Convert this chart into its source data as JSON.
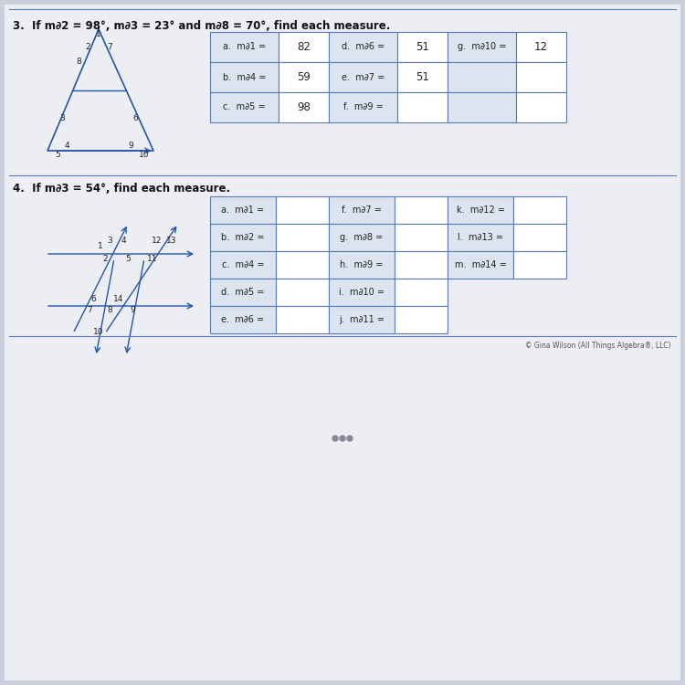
{
  "bg_color": "#d8dce8",
  "page_bg": "#f0f2f8",
  "title3": "3.  If m∂2 = 98°, m∂3 = 23° and m∂8 = 70°, find each measure.",
  "title4": "4.  If m∂3 = 54°, find each measure.",
  "section3_answers": {
    "a": "82",
    "b": "59",
    "c": "98",
    "d": "51",
    "e": "51",
    "f": "",
    "g_label": "m∂10 =",
    "g": "12"
  },
  "section3_rows": [
    [
      "a.  m∂1 =",
      "82",
      "d.  m∂6 =",
      "51",
      "g.  m∂10 =",
      "12"
    ],
    [
      "b.  m∂4 =",
      "59",
      "e.  m∂7 =",
      "51",
      "",
      ""
    ],
    [
      "c.  m∂5 =",
      "98",
      "f.  m∂9 =",
      "",
      "",
      ""
    ]
  ],
  "section4_rows": [
    [
      "a.  m∂1 =",
      "",
      "f.  m∂7 =",
      "",
      "k.  m∂12 =",
      ""
    ],
    [
      "b.  m∂2 =",
      "",
      "g.  m∂8 =",
      "",
      "l.  m∂13 =",
      ""
    ],
    [
      "c.  m∂4 =",
      "",
      "h.  m∂9 =",
      "",
      "m.  m∂14 =",
      ""
    ],
    [
      "d.  m∂5 =",
      "",
      "i.  m∂10 =",
      "",
      "",
      ""
    ],
    [
      "e.  m∂6 =",
      "",
      "j.  m∂11 =",
      "",
      "",
      ""
    ]
  ],
  "footer": "© Gina Wilson (All Things Algebra®, LLC)"
}
